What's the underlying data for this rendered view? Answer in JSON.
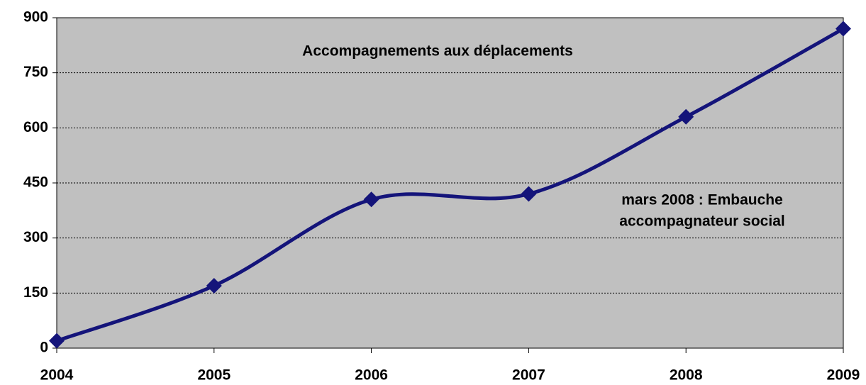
{
  "chart_data": {
    "type": "line",
    "title": "Accompagnements aux déplacements",
    "annotations": [
      "mars 2008 : Embauche",
      "accompagnateur social"
    ],
    "x": [
      2004,
      2005,
      2006,
      2007,
      2008,
      2009
    ],
    "series": [
      {
        "name": "Accompagnements aux déplacements",
        "color": "#14147a",
        "values": [
          20,
          170,
          405,
          420,
          630,
          870
        ]
      }
    ],
    "xlim": [
      2004,
      2009
    ],
    "xticks": [
      2004,
      2005,
      2006,
      2007,
      2008,
      2009
    ],
    "ylim": [
      0,
      900
    ],
    "yticks": [
      0,
      150,
      300,
      450,
      600,
      750,
      900
    ],
    "grid": true,
    "smooth": true
  }
}
